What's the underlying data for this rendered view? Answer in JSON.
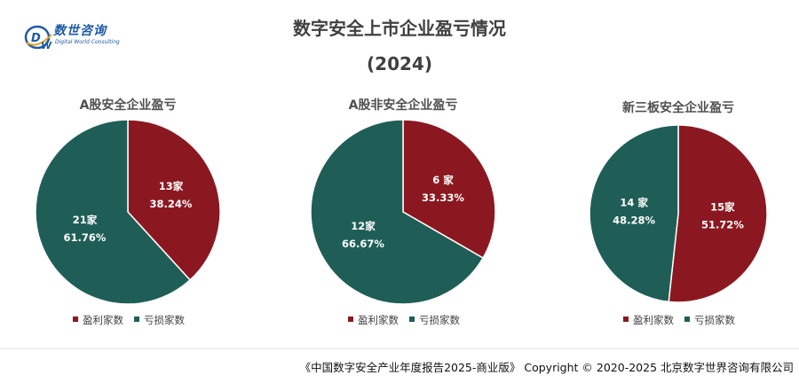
{
  "logo": {
    "cn": "数世咨询",
    "en": "Digital World Consulting",
    "mark": "DW"
  },
  "title": "数字安全上市企业盈亏情况",
  "year": "(2024)",
  "colors": {
    "profit": "#8b1820",
    "loss": "#1f5e57",
    "title": "#404040"
  },
  "legend": {
    "profit_label": "盈利家数",
    "loss_label": "亏损家数"
  },
  "chart_data": [
    {
      "type": "pie",
      "title": "A股安全企业盈亏",
      "slices": [
        {
          "name": "盈利家数",
          "value": 13,
          "count_label": "13家",
          "pct_label": "38.24%"
        },
        {
          "name": "亏损家数",
          "value": 21,
          "count_label": "21家",
          "pct_label": "61.76%"
        }
      ]
    },
    {
      "type": "pie",
      "title": "A股非安全企业盈亏",
      "slices": [
        {
          "name": "盈利家数",
          "value": 6,
          "count_label": "6 家",
          "pct_label": "33.33%"
        },
        {
          "name": "亏损家数",
          "value": 12,
          "count_label": "12家",
          "pct_label": "66.67%"
        }
      ]
    },
    {
      "type": "pie",
      "title": "新三板安全企业盈亏",
      "slices": [
        {
          "name": "盈利家数",
          "value": 15,
          "count_label": "15家",
          "pct_label": "51.72%"
        },
        {
          "name": "亏损家数",
          "value": 14,
          "count_label": "14 家",
          "pct_label": "48.28%"
        }
      ]
    }
  ],
  "footer": "《中国数字安全产业年度报告2025-商业版》 Copyright © 2020-2025 北京数字世界咨询有限公司"
}
